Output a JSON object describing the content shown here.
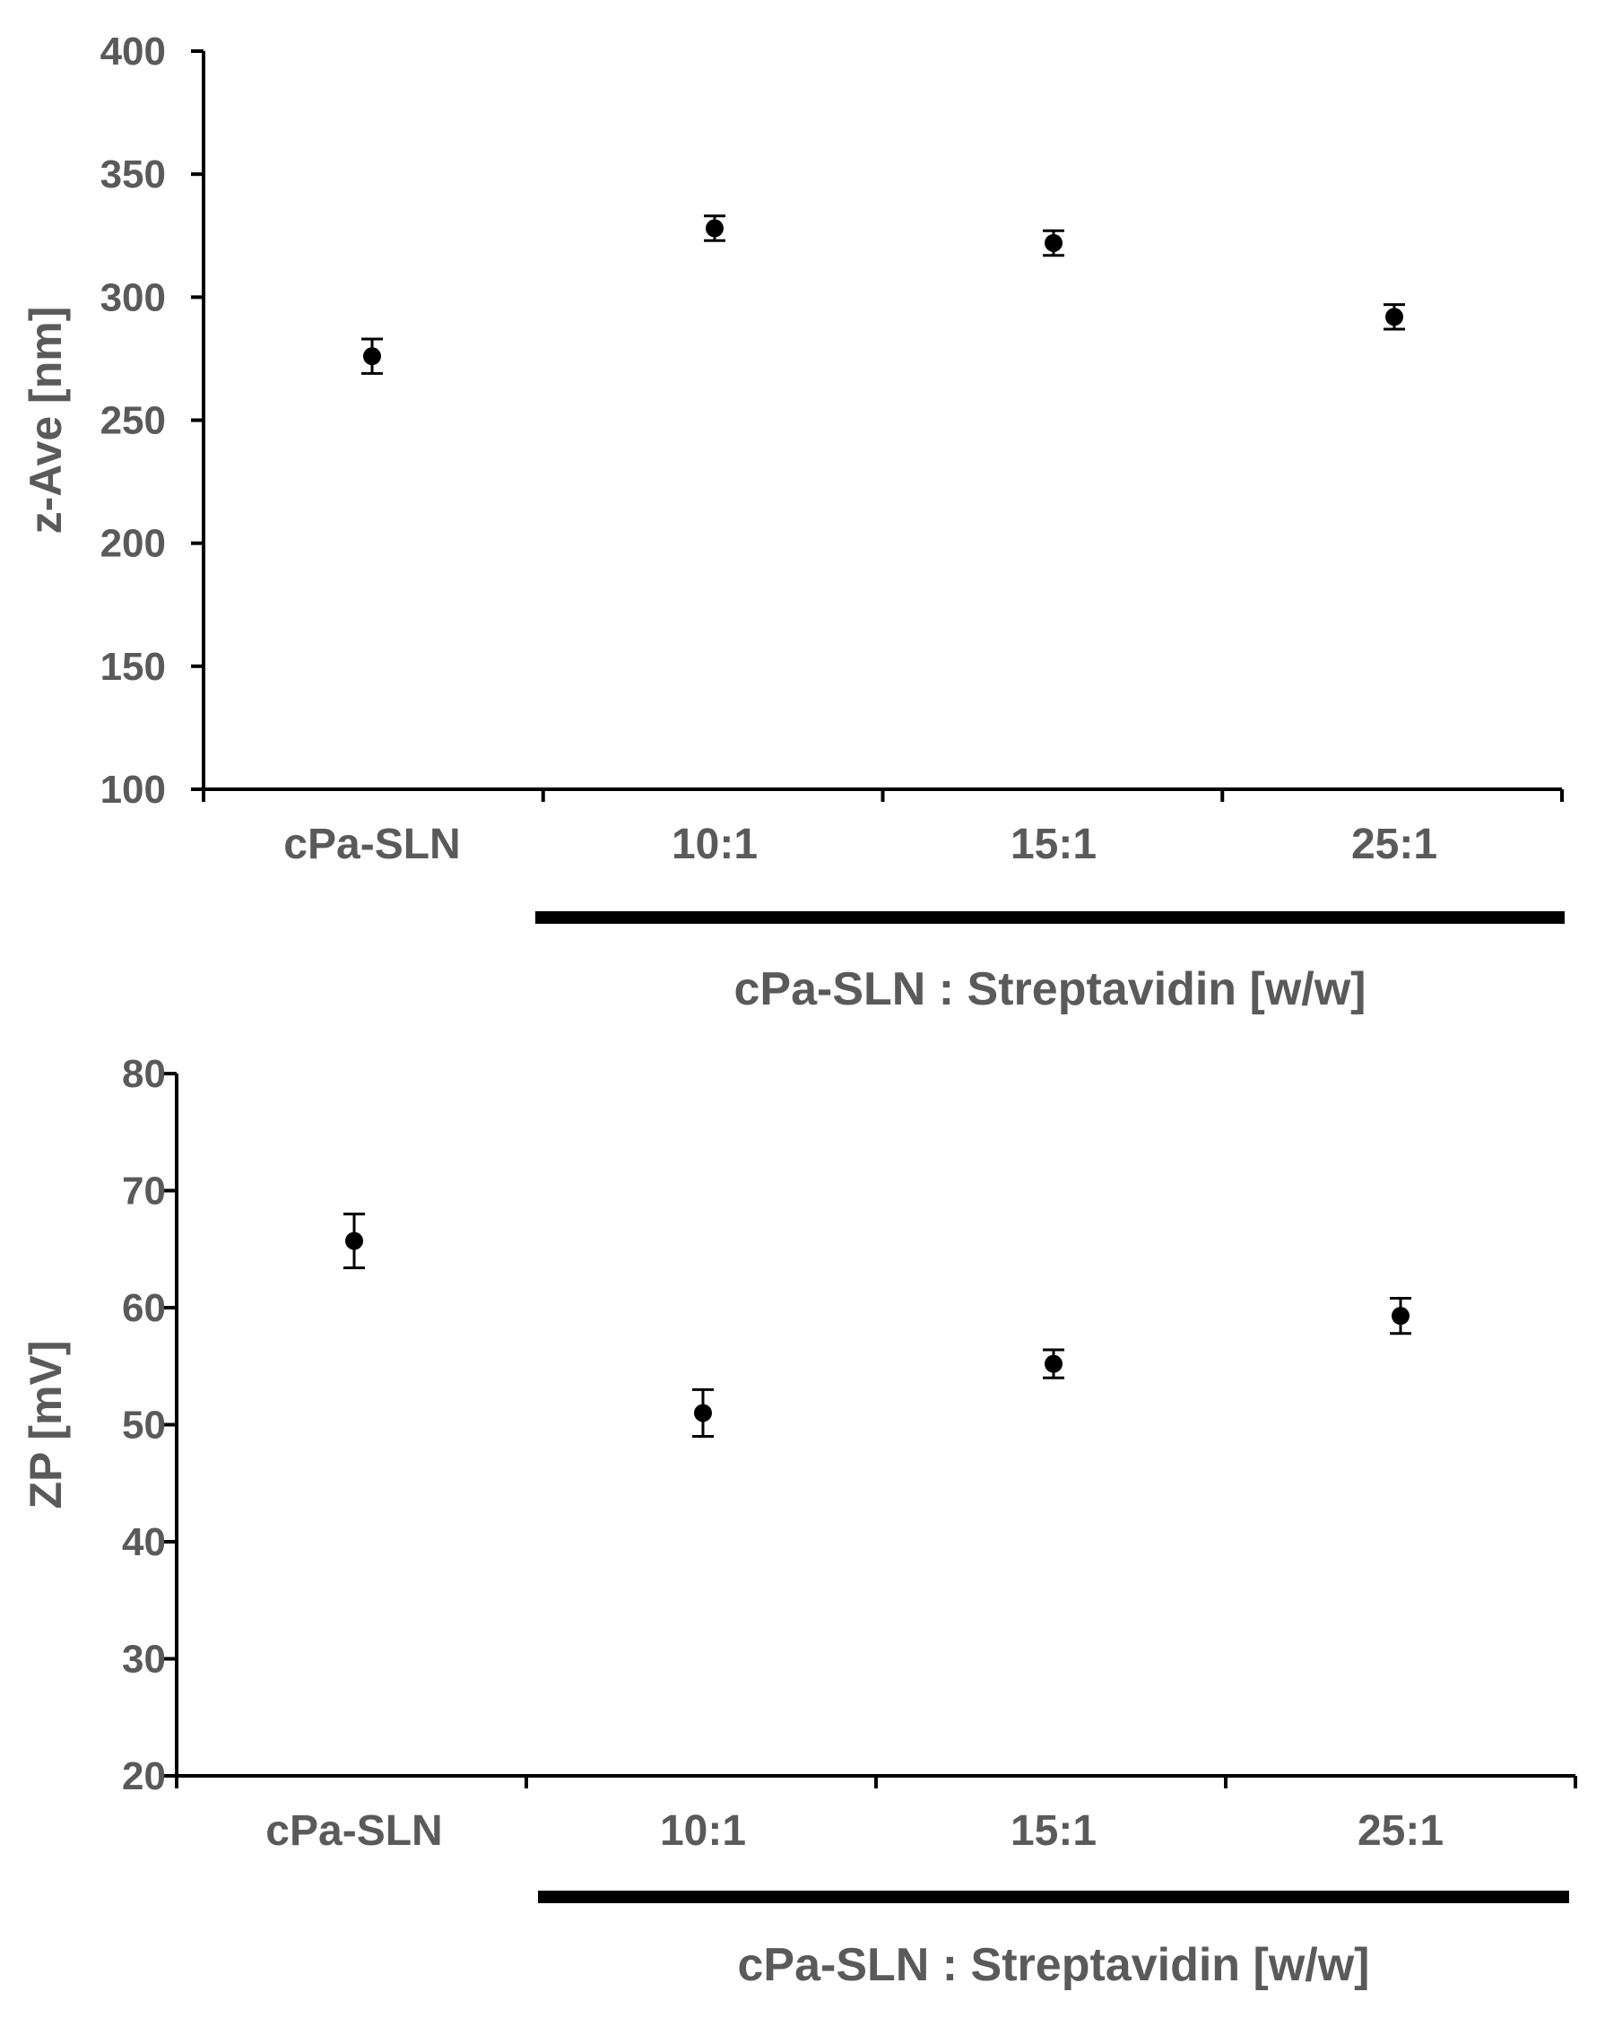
{
  "chart_data": [
    {
      "type": "scatter",
      "categories": [
        "cPa-SLN",
        "10:1",
        "15:1",
        "25:1"
      ],
      "series": [
        {
          "values": [
            276,
            328,
            322,
            292
          ],
          "errors": [
            7,
            5,
            5,
            5
          ]
        }
      ],
      "ylabel": "z-Ave [nm]",
      "ylim": [
        100,
        400
      ],
      "yticks": [
        100,
        150,
        200,
        250,
        300,
        350,
        400
      ],
      "group_label": "cPa-SLN : Streptavidin [w/w]",
      "grid": false
    },
    {
      "type": "scatter",
      "categories": [
        "cPa-SLN",
        "10:1",
        "15:1",
        "25:1"
      ],
      "series": [
        {
          "values": [
            65.7,
            51.0,
            55.2,
            59.3
          ],
          "errors": [
            2.3,
            2.0,
            1.2,
            1.5
          ]
        }
      ],
      "ylabel": "ZP [mV]",
      "ylim": [
        20,
        80
      ],
      "yticks": [
        20,
        30,
        40,
        50,
        60,
        70,
        80
      ],
      "group_label": "cPa-SLN : Streptavidin [w/w]",
      "grid": false
    }
  ]
}
